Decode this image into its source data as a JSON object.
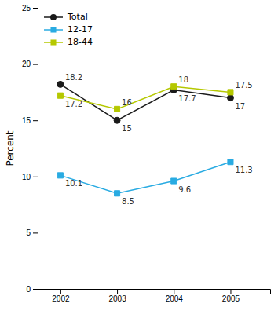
{
  "chart_data": {
    "type": "line",
    "x": [
      2002,
      2003,
      2004,
      2005
    ],
    "series": [
      {
        "name": "Total",
        "color": "#1a1a1a",
        "marker": "circle",
        "values": [
          18.2,
          15.0,
          17.7,
          17.0
        ]
      },
      {
        "name": "12-17",
        "color": "#29abe2",
        "marker": "square",
        "values": [
          10.1,
          8.5,
          9.6,
          11.3
        ]
      },
      {
        "name": "18-44",
        "color": "#b5c800",
        "marker": "square",
        "values": [
          17.2,
          16.0,
          18.0,
          17.5
        ]
      }
    ],
    "ylabel": "Percent",
    "xlim": [
      2001.6,
      2005.7
    ],
    "xticks": [
      2002,
      2003,
      2004,
      2005
    ],
    "ylim": [
      0,
      25
    ],
    "yticks": [
      0,
      5,
      10,
      15,
      20,
      25
    ],
    "data_labels": true,
    "grid": false,
    "legend": "upper left"
  }
}
